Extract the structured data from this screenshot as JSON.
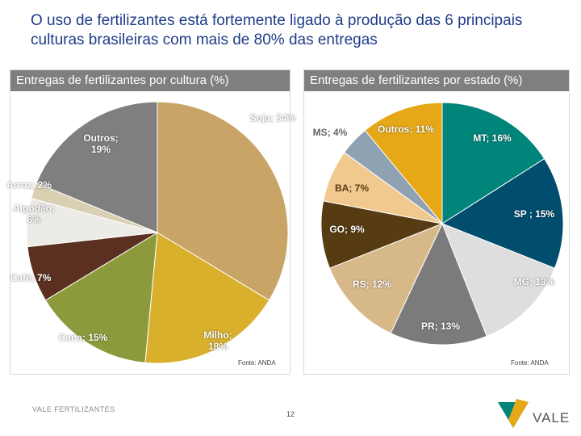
{
  "slide": {
    "title": "O uso de fertilizantes está fortemente ligado à produção das 6 principais culturas brasileiras com mais de 80% das entregas",
    "brand": "VALE FERTILIZANTES",
    "page_number": "12",
    "logo": "VALE"
  },
  "chart_data": [
    {
      "type": "pie",
      "title": "Entregas de fertilizantes por cultura (%)",
      "labels": [
        "Soja; 34%",
        "Milho; 18%",
        "Cana; 15%",
        "Café; 7%",
        "Algodão; 6%",
        "Arroz; 2%",
        "Outros; 19%"
      ],
      "values": [
        34,
        18,
        15,
        7,
        6,
        2,
        19
      ],
      "colors": [
        "#c8a466",
        "#d8b02c",
        "#8d9a3c",
        "#5b3020",
        "#ecebe6",
        "#d9d0b4",
        "#7f7f7f"
      ],
      "label_colors": [
        "#ffffff",
        "#ffffff",
        "#ffffff",
        "#ffffff",
        "#ffffff",
        "#ffffff",
        "#ffffff"
      ],
      "source": "Fonte: ANDA"
    },
    {
      "type": "pie",
      "title": "Entregas de fertilizantes por estado (%)",
      "labels": [
        "MT; 16%",
        "SP ; 15%",
        "MG; 13%",
        "PR; 13%",
        "RS; 12%",
        "GO; 9%",
        "BA; 7%",
        "MS; 4%",
        "Outros; 11%"
      ],
      "values": [
        16,
        15,
        13,
        13,
        12,
        9,
        7,
        4,
        11
      ],
      "colors": [
        "#00857a",
        "#004d6e",
        "#dedede",
        "#7b7b7b",
        "#d7b888",
        "#573b12",
        "#f1c98f",
        "#8ea2b2",
        "#e6a817"
      ],
      "label_colors": [
        "#ffffff",
        "#ffffff",
        "#ffffff",
        "#ffffff",
        "#ffffff",
        "#ffffff",
        "#5a3a10",
        "#666666",
        "#ffffff"
      ],
      "source": "Fonte: ANDA"
    }
  ]
}
